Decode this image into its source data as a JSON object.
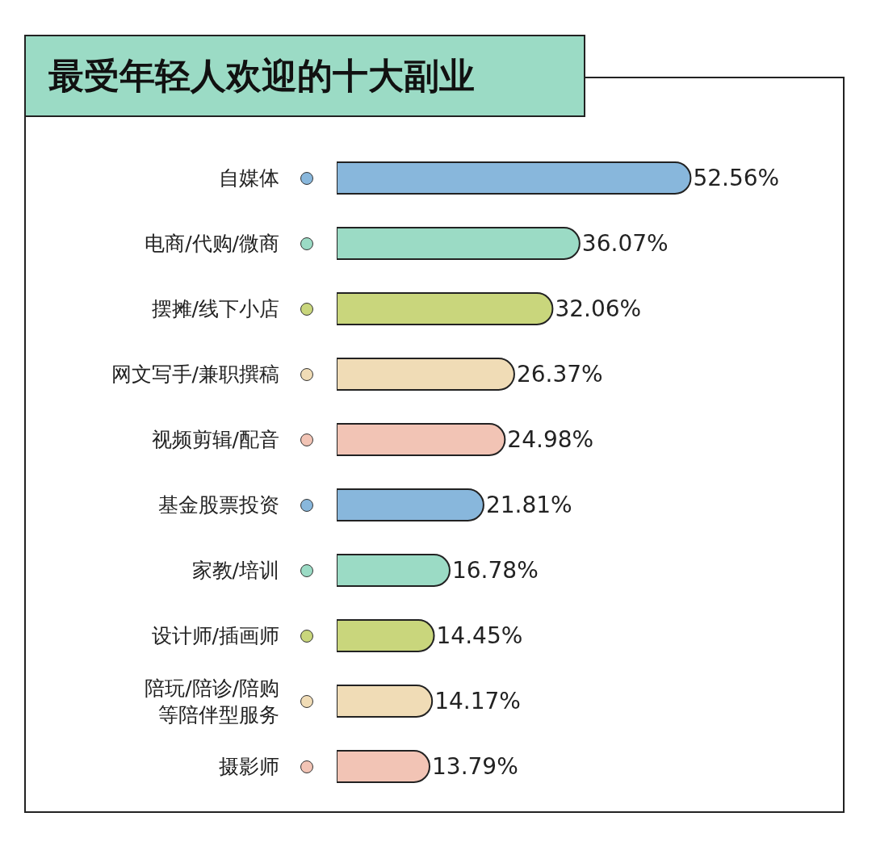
{
  "chart_data": {
    "type": "bar",
    "orientation": "horizontal",
    "title": "最受年轻人欢迎的十大副业",
    "categories": [
      "自媒体",
      "电商/代购/微商",
      "摆摊/线下小店",
      "网文写手/兼职撰稿",
      "视频剪辑/配音",
      "基金股票投资",
      "家教/培训",
      "设计师/插画师",
      "陪玩/陪诊/陪购等陪伴型服务",
      "摄影师"
    ],
    "values": [
      52.56,
      36.07,
      32.06,
      26.37,
      24.98,
      21.81,
      16.78,
      14.45,
      14.17,
      13.79
    ],
    "value_labels": [
      "52.56%",
      "36.07%",
      "32.06%",
      "26.37%",
      "24.98%",
      "21.81%",
      "16.78%",
      "14.45%",
      "14.17%",
      "13.79%"
    ],
    "colors": [
      "#88b7dc",
      "#9bdbc5",
      "#c9d67c",
      "#f0dcb6",
      "#f2c4b5",
      "#88b7dc",
      "#9bdbc5",
      "#c9d67c",
      "#f0dcb6",
      "#f2c4b5"
    ]
  }
}
